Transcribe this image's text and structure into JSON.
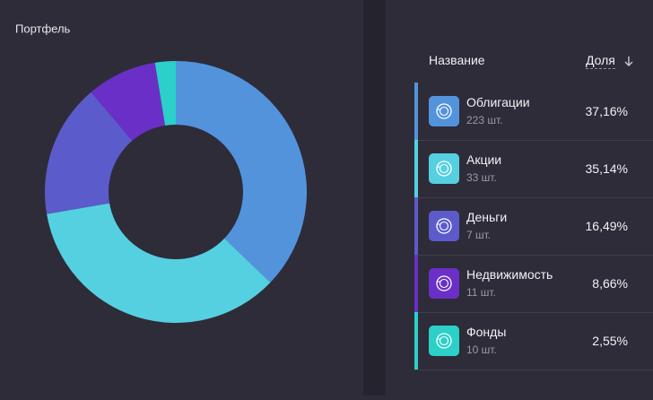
{
  "chart_data": {
    "type": "pie",
    "title": "Портфель",
    "categories": [
      "Облигации",
      "Акции",
      "Деньги",
      "Недвижимость",
      "Фонды"
    ],
    "values": [
      37.16,
      35.14,
      16.49,
      8.66,
      2.55
    ],
    "value_labels": [
      "37,16%",
      "35,14%",
      "16,49%",
      "8,66%",
      "2,55%"
    ],
    "colors": [
      "#5393dc",
      "#55d0e0",
      "#5b5bcc",
      "#6a2fc7",
      "#2bd0c8"
    ]
  },
  "table": {
    "headers": [
      "Название",
      "Доля"
    ],
    "counts": [
      "223 шт.",
      "33 шт.",
      "7 шт.",
      "11 шт.",
      "10 шт."
    ]
  }
}
